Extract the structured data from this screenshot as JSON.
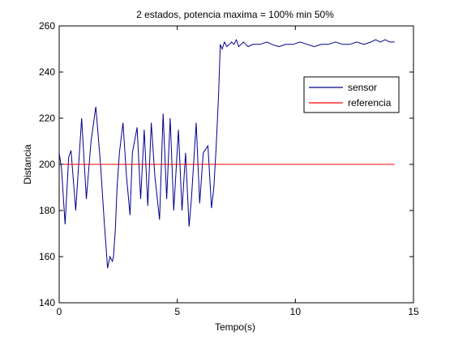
{
  "chart_data": {
    "type": "line",
    "title": "2 estados, potencia maxima = 100%  min 50%",
    "xlabel": "Tempo(s)",
    "ylabel": "Distancia",
    "xlim": [
      0,
      15
    ],
    "ylim": [
      140,
      260
    ],
    "xticks": [
      0,
      5,
      10,
      15
    ],
    "yticks": [
      140,
      160,
      180,
      200,
      220,
      240,
      260
    ],
    "grid": false,
    "legend_position": "top-right",
    "series": [
      {
        "name": "sensor",
        "color": "#00008b",
        "x": [
          0.0,
          0.1,
          0.25,
          0.4,
          0.5,
          0.7,
          0.95,
          1.15,
          1.35,
          1.55,
          1.75,
          1.9,
          2.05,
          2.15,
          2.25,
          2.3,
          2.38,
          2.45,
          2.55,
          2.7,
          2.85,
          3.0,
          3.1,
          3.3,
          3.45,
          3.6,
          3.75,
          3.9,
          4.05,
          4.25,
          4.4,
          4.55,
          4.7,
          4.85,
          5.05,
          5.2,
          5.35,
          5.5,
          5.6,
          5.8,
          5.95,
          6.1,
          6.3,
          6.45,
          6.55,
          6.65,
          6.75,
          6.82,
          6.9,
          7.0,
          7.1,
          7.2,
          7.3,
          7.4,
          7.5,
          7.6,
          7.7,
          7.8,
          7.9,
          8.0,
          8.2,
          8.5,
          8.8,
          9.0,
          9.3,
          9.6,
          9.9,
          10.2,
          10.5,
          10.8,
          11.1,
          11.4,
          11.7,
          12.0,
          12.3,
          12.6,
          12.9,
          13.2,
          13.4,
          13.6,
          13.8,
          14.0,
          14.2
        ],
        "y": [
          205,
          198,
          174,
          203,
          206,
          180,
          220,
          185,
          210,
          225,
          200,
          176,
          155,
          160,
          158,
          160,
          172,
          190,
          205,
          218,
          195,
          178,
          205,
          216,
          185,
          215,
          182,
          218,
          195,
          176,
          222,
          185,
          220,
          180,
          215,
          180,
          205,
          173,
          185,
          218,
          183,
          205,
          208,
          181,
          190,
          208,
          230,
          252,
          250,
          253,
          251,
          252,
          253,
          252,
          254,
          251,
          252,
          253,
          252,
          251,
          252,
          252,
          253,
          252,
          251,
          252,
          252,
          253,
          252,
          251,
          252,
          252,
          253,
          252,
          252,
          253,
          252,
          253,
          254,
          253,
          254,
          253,
          253
        ]
      },
      {
        "name": "referencia",
        "color": "#ff0000",
        "x": [
          0,
          14.2
        ],
        "y": [
          200,
          200
        ]
      }
    ]
  }
}
